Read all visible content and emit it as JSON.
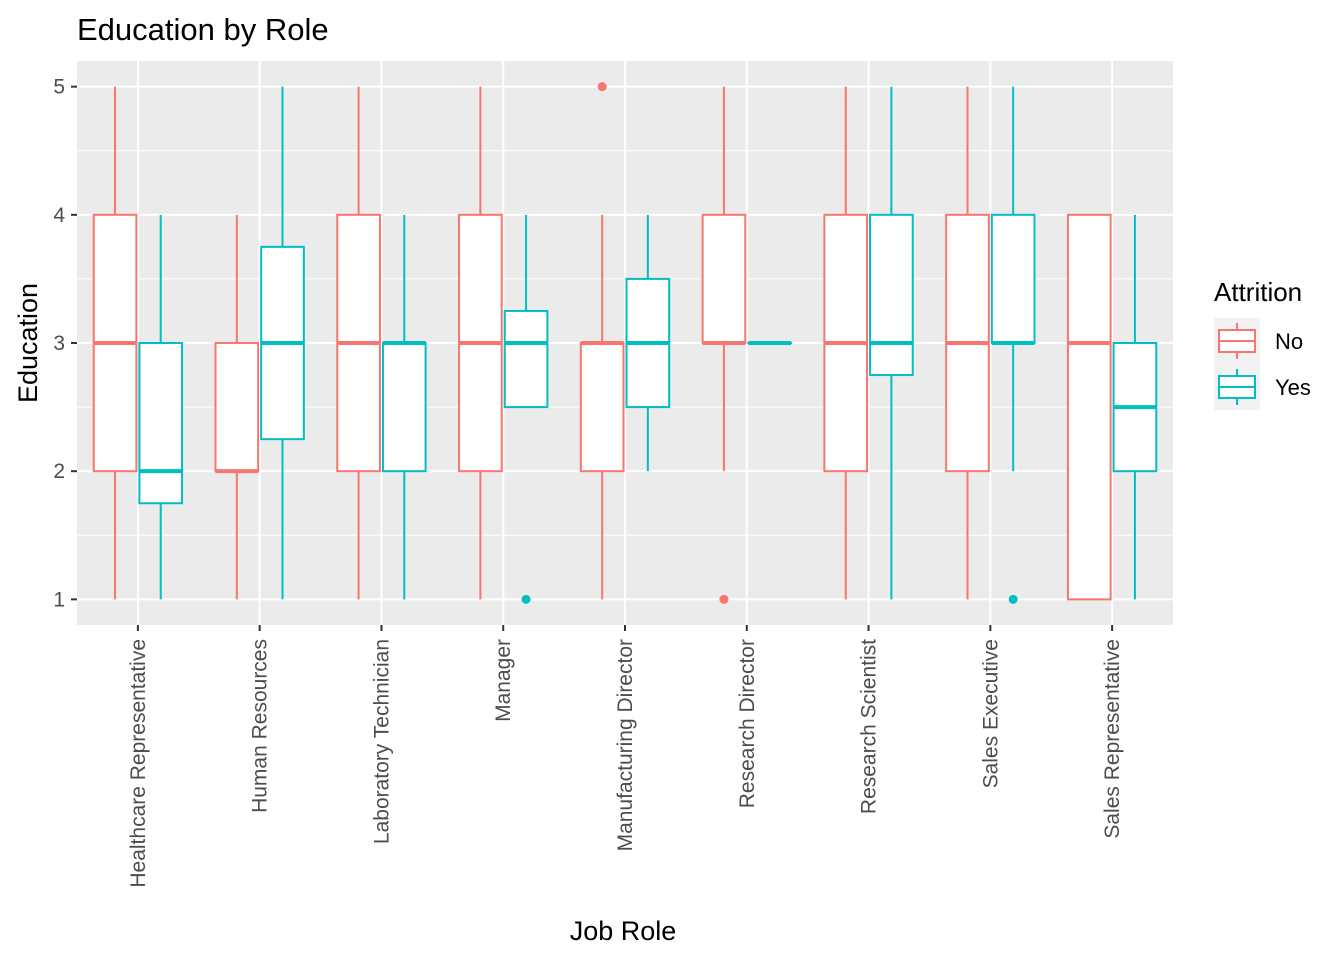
{
  "chart_data": {
    "type": "boxplot",
    "title": "Education by Role",
    "xlabel": "Job Role",
    "ylabel": "Education",
    "ylim": [
      0.8,
      5.2
    ],
    "yticks": [
      1,
      2,
      3,
      4,
      5
    ],
    "grid": true,
    "legend": {
      "title": "Attrition",
      "placement": "right"
    },
    "categories": [
      "Healthcare Representative",
      "Human Resources",
      "Laboratory Technician",
      "Manager",
      "Manufacturing Director",
      "Research Director",
      "Research Scientist",
      "Sales Executive",
      "Sales Representative"
    ],
    "series": [
      {
        "name": "No",
        "color": "#F8766D",
        "boxes": [
          {
            "min": 1,
            "q1": 2,
            "median": 3,
            "q3": 4,
            "max": 5,
            "outliers": []
          },
          {
            "min": 1,
            "q1": 2,
            "median": 2,
            "q3": 3,
            "max": 4,
            "outliers": []
          },
          {
            "min": 1,
            "q1": 2,
            "median": 3,
            "q3": 4,
            "max": 5,
            "outliers": []
          },
          {
            "min": 1,
            "q1": 2,
            "median": 3,
            "q3": 4,
            "max": 5,
            "outliers": []
          },
          {
            "min": 1,
            "q1": 2,
            "median": 3,
            "q3": 3,
            "max": 4,
            "outliers": [
              5
            ]
          },
          {
            "min": 2,
            "q1": 3,
            "median": 3,
            "q3": 4,
            "max": 5,
            "outliers": [
              1
            ]
          },
          {
            "min": 1,
            "q1": 2,
            "median": 3,
            "q3": 4,
            "max": 5,
            "outliers": []
          },
          {
            "min": 1,
            "q1": 2,
            "median": 3,
            "q3": 4,
            "max": 5,
            "outliers": []
          },
          {
            "min": 1,
            "q1": 1,
            "median": 3,
            "q3": 4,
            "max": 4,
            "outliers": []
          }
        ]
      },
      {
        "name": "Yes",
        "color": "#00BFC4",
        "boxes": [
          {
            "min": 1,
            "q1": 1.75,
            "median": 2,
            "q3": 3,
            "max": 4,
            "outliers": []
          },
          {
            "min": 1,
            "q1": 2.25,
            "median": 3,
            "q3": 3.75,
            "max": 5,
            "outliers": []
          },
          {
            "min": 1,
            "q1": 2,
            "median": 3,
            "q3": 3,
            "max": 4,
            "outliers": []
          },
          {
            "min": 2.5,
            "q1": 2.5,
            "median": 3,
            "q3": 3.25,
            "max": 4,
            "outliers": [
              1
            ]
          },
          {
            "min": 2,
            "q1": 2.5,
            "median": 3,
            "q3": 3.5,
            "max": 4,
            "outliers": []
          },
          {
            "min": 3,
            "q1": 3,
            "median": 3,
            "q3": 3,
            "max": 3,
            "outliers": []
          },
          {
            "min": 1,
            "q1": 2.75,
            "median": 3,
            "q3": 4,
            "max": 5,
            "outliers": []
          },
          {
            "min": 2,
            "q1": 3,
            "median": 3,
            "q3": 4,
            "max": 5,
            "outliers": [
              1
            ]
          },
          {
            "min": 1,
            "q1": 2,
            "median": 2.5,
            "q3": 3,
            "max": 4,
            "outliers": []
          }
        ]
      }
    ]
  }
}
